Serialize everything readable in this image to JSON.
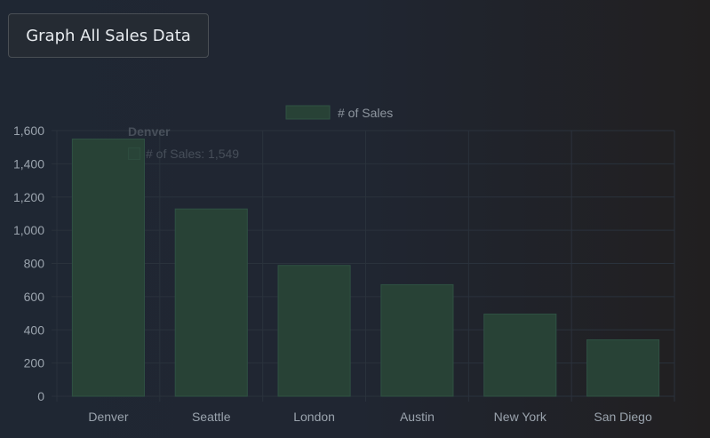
{
  "button": {
    "label": "Graph All Sales Data"
  },
  "tooltip": {
    "title": "Denver",
    "line": "# of Sales: 1,549"
  },
  "chart_data": {
    "type": "bar",
    "categories": [
      "Denver",
      "Seattle",
      "London",
      "Austin",
      "New York",
      "San Diego"
    ],
    "series": [
      {
        "name": "# of Sales",
        "values": [
          1549,
          1128,
          788,
          672,
          495,
          340
        ]
      }
    ],
    "ylim": [
      0,
      1600
    ],
    "yticks": [
      "0",
      "200",
      "400",
      "600",
      "800",
      "1,000",
      "1,200",
      "1,400",
      "1,600"
    ],
    "grid": true,
    "legend": "top-center",
    "colors": {
      "bar_fill": "#284236",
      "bar_stroke": "#2f5143",
      "grid": "#2a323c",
      "tick_text": "#9aa3ad"
    }
  }
}
